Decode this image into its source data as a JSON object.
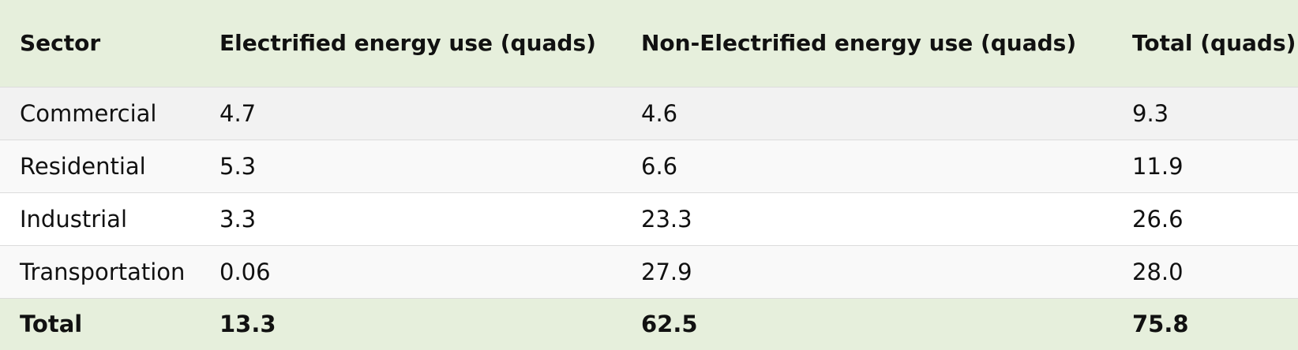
{
  "table": {
    "headers": [
      "Sector",
      "Electrified energy use (quads)",
      "Non-Electrified energy use (quads)",
      "Total (quads)"
    ],
    "rows": [
      [
        "Commercial",
        "4.7",
        "4.6",
        "9.3"
      ],
      [
        "Residential",
        "5.3",
        "6.6",
        "11.9"
      ],
      [
        "Industrial",
        "3.3",
        "23.3",
        "26.6"
      ],
      [
        "Transportation",
        "0.06",
        "27.9",
        "28.0"
      ]
    ],
    "total": [
      "Total",
      "13.3",
      "62.5",
      "75.8"
    ]
  }
}
